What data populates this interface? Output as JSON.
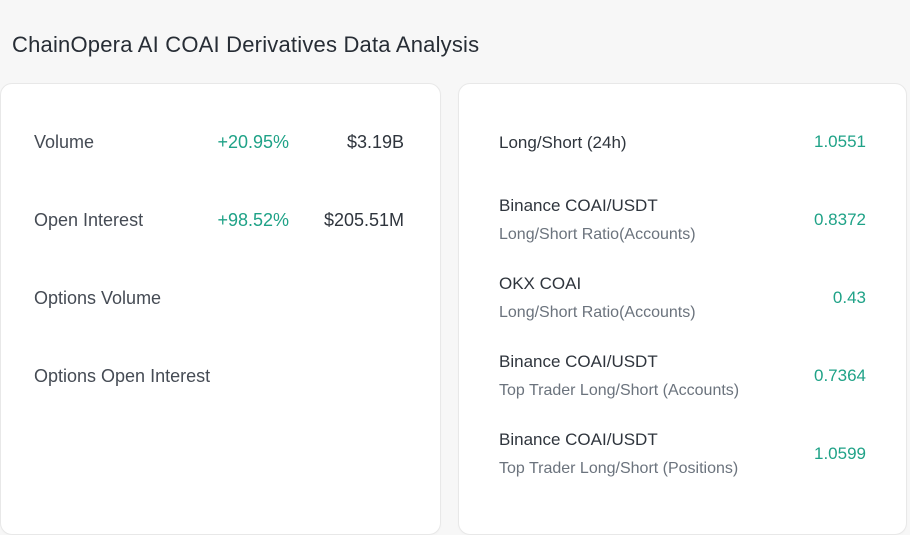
{
  "header": {
    "title": {
      "prefix": "ChainOpera AI ",
      "ticker": "COAI",
      "suffix": " Derivatives Data Analysis"
    }
  },
  "colors": {
    "page_background": "#F7F7F7",
    "card_background": "#FFFFFF",
    "card_border": "#E8E8E8",
    "title_text": "#272D35",
    "label_text": "#454B54",
    "dark_value_text": "#2F353D",
    "sublabel_text": "#6B737D",
    "positive_teal": "#1FA287"
  },
  "left_panel": {
    "rows": [
      {
        "label": "Volume",
        "change": "+20.95%",
        "value": "$3.19B"
      },
      {
        "label": "Open Interest",
        "change": "+98.52%",
        "value": "$205.51M"
      },
      {
        "label": "Options Volume",
        "change": "",
        "value": ""
      },
      {
        "label": "Options Open Interest",
        "change": "",
        "value": ""
      }
    ]
  },
  "right_panel": {
    "rows": [
      {
        "label": "Long/Short (24h)",
        "sublabel": "",
        "value": "1.0551"
      },
      {
        "label": "Binance COAI/USDT",
        "sublabel": "Long/Short Ratio(Accounts)",
        "value": "0.8372"
      },
      {
        "label": "OKX COAI",
        "sublabel": "Long/Short Ratio(Accounts)",
        "value": "0.43"
      },
      {
        "label": "Binance COAI/USDT",
        "sublabel": "Top Trader Long/Short (Accounts)",
        "value": "0.7364"
      },
      {
        "label": "Binance COAI/USDT",
        "sublabel": "Top Trader Long/Short (Positions)",
        "value": "1.0599"
      }
    ]
  }
}
